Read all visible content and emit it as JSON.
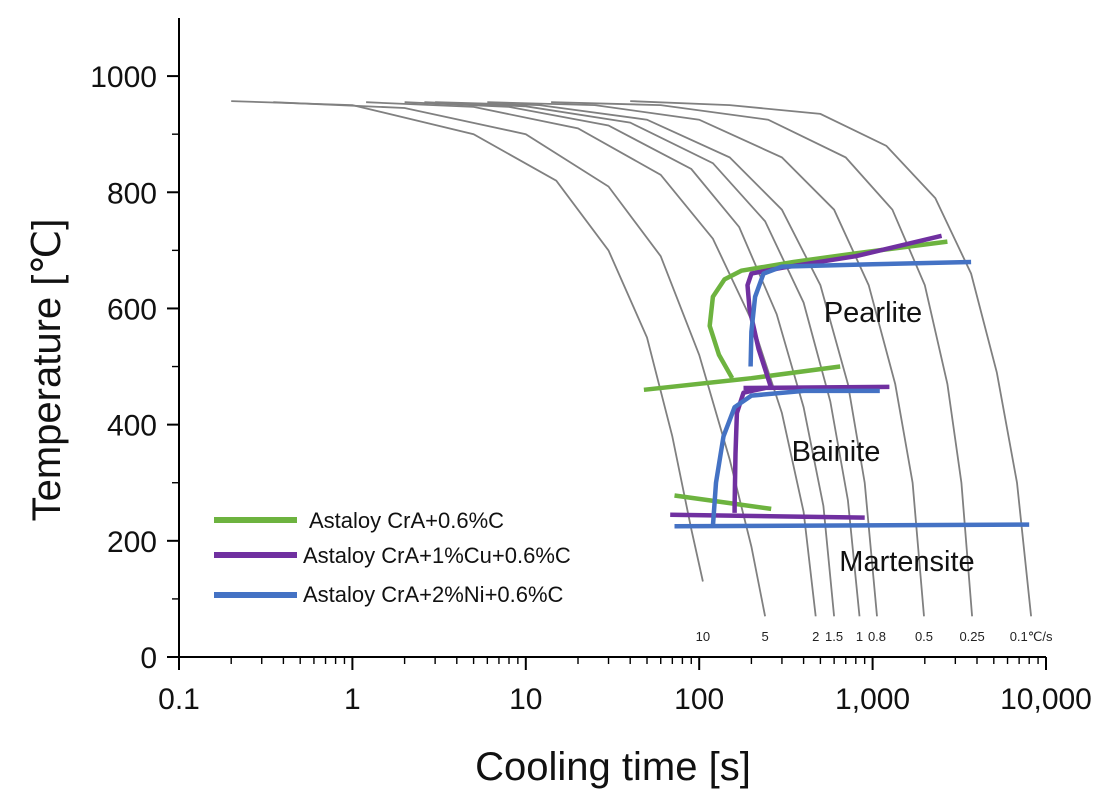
{
  "chart_data": {
    "type": "line",
    "xlabel": "Cooling time [s]",
    "ylabel": "Temperature [℃]",
    "xscale": "log",
    "xlim": [
      0.1,
      10000
    ],
    "ylim": [
      0,
      1100
    ],
    "x_ticks": [
      {
        "value": 0.1,
        "label": "0.1"
      },
      {
        "value": 1,
        "label": "1"
      },
      {
        "value": 10,
        "label": "10"
      },
      {
        "value": 100,
        "label": "100"
      },
      {
        "value": 1000,
        "label": "1,000"
      },
      {
        "value": 10000,
        "label": "10,000"
      }
    ],
    "y_ticks": [
      {
        "value": 0,
        "label": "0"
      },
      {
        "value": 200,
        "label": "200"
      },
      {
        "value": 400,
        "label": "400"
      },
      {
        "value": 600,
        "label": "600"
      },
      {
        "value": 800,
        "label": "800"
      },
      {
        "value": 1000,
        "label": "1000"
      }
    ],
    "grid": false,
    "legend_position": "bottom-left",
    "cooling_curve_color": "#808080",
    "cooling_curves": [
      {
        "rate_label": "10",
        "points": [
          [
            0.2,
            957
          ],
          [
            1,
            950
          ],
          [
            5,
            900
          ],
          [
            15,
            820
          ],
          [
            30,
            700
          ],
          [
            50,
            550
          ],
          [
            70,
            380
          ],
          [
            90,
            220
          ],
          [
            105,
            130
          ]
        ]
      },
      {
        "rate_label": "5",
        "points": [
          [
            0.35,
            955
          ],
          [
            2,
            945
          ],
          [
            10,
            900
          ],
          [
            30,
            810
          ],
          [
            60,
            690
          ],
          [
            100,
            520
          ],
          [
            150,
            340
          ],
          [
            200,
            190
          ],
          [
            240,
            70
          ]
        ]
      },
      {
        "rate_label": "2",
        "points": [
          [
            1.2,
            955
          ],
          [
            5,
            947
          ],
          [
            20,
            910
          ],
          [
            60,
            830
          ],
          [
            120,
            720
          ],
          [
            200,
            580
          ],
          [
            300,
            420
          ],
          [
            400,
            250
          ],
          [
            470,
            70
          ]
        ]
      },
      {
        "rate_label": "1.5",
        "points": [
          [
            2,
            955
          ],
          [
            8,
            947
          ],
          [
            30,
            915
          ],
          [
            90,
            840
          ],
          [
            170,
            740
          ],
          [
            280,
            590
          ],
          [
            400,
            430
          ],
          [
            520,
            260
          ],
          [
            600,
            70
          ]
        ]
      },
      {
        "rate_label": "1",
        "points": [
          [
            2.6,
            955
          ],
          [
            10,
            948
          ],
          [
            40,
            920
          ],
          [
            120,
            850
          ],
          [
            240,
            750
          ],
          [
            400,
            610
          ],
          [
            570,
            440
          ],
          [
            720,
            270
          ],
          [
            840,
            70
          ]
        ]
      },
      {
        "rate_label": "0.8",
        "points": [
          [
            3,
            955
          ],
          [
            12,
            950
          ],
          [
            50,
            925
          ],
          [
            150,
            860
          ],
          [
            300,
            770
          ],
          [
            500,
            640
          ],
          [
            720,
            470
          ],
          [
            900,
            300
          ],
          [
            1060,
            70
          ]
        ]
      },
      {
        "rate_label": "0.5",
        "points": [
          [
            6,
            955
          ],
          [
            25,
            950
          ],
          [
            100,
            925
          ],
          [
            300,
            860
          ],
          [
            600,
            770
          ],
          [
            950,
            640
          ],
          [
            1350,
            470
          ],
          [
            1700,
            300
          ],
          [
            1980,
            70
          ]
        ]
      },
      {
        "rate_label": "0.25",
        "points": [
          [
            14,
            955
          ],
          [
            60,
            950
          ],
          [
            250,
            925
          ],
          [
            700,
            860
          ],
          [
            1300,
            770
          ],
          [
            2000,
            640
          ],
          [
            2700,
            470
          ],
          [
            3250,
            300
          ],
          [
            3750,
            70
          ]
        ]
      },
      {
        "rate_label": "0.1℃/s",
        "points": [
          [
            40,
            957
          ],
          [
            150,
            950
          ],
          [
            500,
            935
          ],
          [
            1200,
            880
          ],
          [
            2300,
            790
          ],
          [
            3700,
            660
          ],
          [
            5200,
            490
          ],
          [
            6800,
            300
          ],
          [
            8200,
            70
          ]
        ]
      }
    ],
    "series": [
      {
        "name": "Astaloy CrA+0.6%C",
        "color": "#6db33f",
        "segments": [
          [
            [
              155,
              480
            ],
            [
              130,
              520
            ],
            [
              115,
              570
            ],
            [
              120,
              620
            ],
            [
              140,
              650
            ],
            [
              175,
              665
            ],
            [
              350,
              680
            ],
            [
              800,
              695
            ],
            [
              2700,
              715
            ]
          ],
          [
            [
              48,
              460
            ],
            [
              200,
              480
            ],
            [
              650,
              500
            ]
          ],
          [
            [
              72,
              278
            ],
            [
              150,
              265
            ],
            [
              260,
              255
            ]
          ]
        ]
      },
      {
        "name": "Astaloy CrA+1%Cu+0.6%C",
        "color": "#7030a0",
        "segments": [
          [
            [
              260,
              463
            ],
            [
              220,
              530
            ],
            [
              195,
              600
            ],
            [
              190,
              640
            ],
            [
              200,
              660
            ],
            [
              300,
              670
            ],
            [
              800,
              690
            ],
            [
              2500,
              725
            ]
          ],
          [
            [
              240,
              463
            ],
            [
              180,
              455
            ],
            [
              165,
              420
            ],
            [
              162,
              350
            ],
            [
              160,
              260
            ],
            [
              160,
              248
            ]
          ],
          [
            [
              180,
              463
            ],
            [
              1250,
              465
            ]
          ],
          [
            [
              68,
              245
            ],
            [
              900,
              240
            ]
          ]
        ]
      },
      {
        "name": "Astaloy CrA+2%Ni+0.6%C",
        "color": "#4472c4",
        "segments": [
          [
            [
              198,
              500
            ],
            [
              200,
              560
            ],
            [
              210,
              620
            ],
            [
              235,
              660
            ],
            [
              300,
              672
            ],
            [
              1000,
              676
            ],
            [
              3700,
              680
            ]
          ],
          [
            [
              120,
              225
            ],
            [
              125,
              300
            ],
            [
              138,
              380
            ],
            [
              160,
              430
            ],
            [
              200,
              450
            ],
            [
              400,
              458
            ],
            [
              1100,
              458
            ]
          ],
          [
            [
              72,
              225
            ],
            [
              8000,
              228
            ]
          ]
        ]
      }
    ],
    "regions": [
      {
        "label": "Pearlite"
      },
      {
        "label": "Bainite"
      },
      {
        "label": "Martensite"
      }
    ]
  }
}
